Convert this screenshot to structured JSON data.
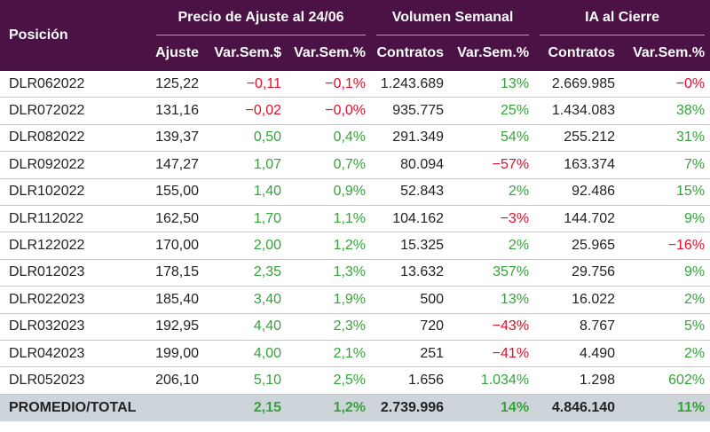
{
  "header": {
    "position_label": "Posición",
    "groups": [
      {
        "label": "Precio de Ajuste al 24/06",
        "span": 3
      },
      {
        "label": "Volumen Semanal",
        "span": 2
      },
      {
        "label": "IA al Cierre",
        "span": 2
      }
    ],
    "subcolumns": [
      "Ajuste",
      "Var.Sem.$",
      "Var.Sem.%",
      "Contratos",
      "Var.Sem.%",
      "Contratos",
      "Var.Sem.%"
    ]
  },
  "colors": {
    "header_bg": "#4a1245",
    "positive": "#35a33a",
    "negative": "#e0102a",
    "total_bg": "#cdd5da"
  },
  "rows": [
    {
      "name": "DLR062022",
      "cells": [
        "125,22",
        "−0,11",
        "−0,1%",
        "1.243.689",
        "13%",
        "2.669.985",
        "−0%"
      ]
    },
    {
      "name": "DLR072022",
      "cells": [
        "131,16",
        "−0,02",
        "−0,0%",
        "935.775",
        "25%",
        "1.434.083",
        "38%"
      ]
    },
    {
      "name": "DLR082022",
      "cells": [
        "139,37",
        "0,50",
        "0,4%",
        "291.349",
        "54%",
        "255.212",
        "31%"
      ]
    },
    {
      "name": "DLR092022",
      "cells": [
        "147,27",
        "1,07",
        "0,7%",
        "80.094",
        "−57%",
        "163.374",
        "7%"
      ]
    },
    {
      "name": "DLR102022",
      "cells": [
        "155,00",
        "1,40",
        "0,9%",
        "52.843",
        "2%",
        "92.486",
        "15%"
      ]
    },
    {
      "name": "DLR112022",
      "cells": [
        "162,50",
        "1,70",
        "1,1%",
        "104.162",
        "−3%",
        "144.702",
        "9%"
      ]
    },
    {
      "name": "DLR122022",
      "cells": [
        "170,00",
        "2,00",
        "1,2%",
        "15.325",
        "2%",
        "25.965",
        "−16%"
      ]
    },
    {
      "name": "DLR012023",
      "cells": [
        "178,15",
        "2,35",
        "1,3%",
        "13.632",
        "357%",
        "29.756",
        "9%"
      ]
    },
    {
      "name": "DLR022023",
      "cells": [
        "185,40",
        "3,40",
        "1,9%",
        "500",
        "13%",
        "16.022",
        "2%"
      ]
    },
    {
      "name": "DLR032023",
      "cells": [
        "192,95",
        "4,40",
        "2,3%",
        "720",
        "−43%",
        "8.767",
        "5%"
      ]
    },
    {
      "name": "DLR042023",
      "cells": [
        "199,00",
        "4,00",
        "2,1%",
        "251",
        "−41%",
        "4.490",
        "2%"
      ]
    },
    {
      "name": "DLR052023",
      "cells": [
        "206,10",
        "5,10",
        "2,5%",
        "1.656",
        "1.034%",
        "1.298",
        "602%"
      ]
    }
  ],
  "total": {
    "name": "PROMEDIO/TOTAL",
    "cells": [
      "",
      "2,15",
      "1,2%",
      "2.739.996",
      "14%",
      "4.846.140",
      "11%"
    ]
  }
}
